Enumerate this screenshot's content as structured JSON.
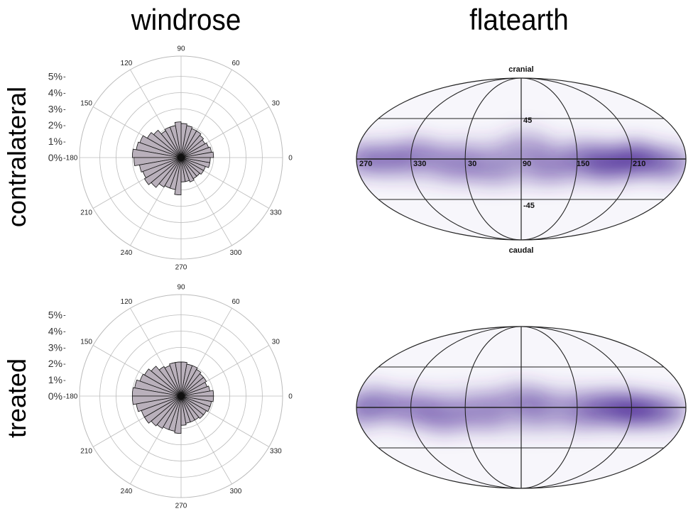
{
  "columns": {
    "left": "windrose",
    "right": "flatearth"
  },
  "rows": {
    "top": "contralateral",
    "bottom": "treated"
  },
  "colors": {
    "bar_fill": "#b9b0bb",
    "bar_stroke": "#111111",
    "grid": "#bbbbbb",
    "density": "#4a2a96",
    "map_line": "#222222"
  },
  "chart_data": [
    {
      "type": "polar-bar",
      "panel": "windrose-contralateral",
      "angle_ticks": [
        "0",
        "30",
        "60",
        "90",
        "120",
        "150",
        "180",
        "210",
        "240",
        "270",
        "300",
        "330"
      ],
      "radial_ticks": [
        "0%",
        "1%",
        "2%",
        "3%",
        "4%",
        "5%"
      ],
      "rlim": [
        0,
        5
      ],
      "bin_width_deg": 10,
      "bin_centers_deg": [
        5,
        15,
        25,
        35,
        45,
        55,
        65,
        75,
        85,
        95,
        105,
        115,
        125,
        135,
        145,
        155,
        165,
        175,
        185,
        195,
        205,
        215,
        225,
        235,
        245,
        255,
        265,
        275,
        285,
        295,
        305,
        315,
        325,
        335,
        345,
        355
      ],
      "values": [
        2.0,
        1.9,
        1.8,
        1.7,
        1.8,
        1.9,
        1.9,
        2.0,
        2.1,
        2.2,
        2.0,
        2.0,
        1.9,
        2.2,
        2.4,
        2.7,
        2.8,
        3.0,
        2.9,
        2.6,
        2.5,
        2.6,
        2.4,
        2.1,
        2.0,
        2.0,
        2.3,
        1.5,
        1.5,
        1.6,
        1.5,
        1.5,
        1.6,
        1.6,
        1.8,
        1.8
      ]
    },
    {
      "type": "heatmap",
      "panel": "flatearth-contralateral",
      "projection": "mollweide",
      "top_label": "cranial",
      "bottom_label": "caudal",
      "lat_labels": [
        "45",
        "-45"
      ],
      "lon_labels": [
        "270",
        "330",
        "30",
        "90",
        "150",
        "210"
      ],
      "parallels": [
        -45,
        0,
        45
      ],
      "density_blobs": [
        {
          "lon": 215,
          "lat": 0,
          "intensity": 1.0
        },
        {
          "lon": 185,
          "lat": -5,
          "intensity": 0.8
        },
        {
          "lon": 250,
          "lat": -5,
          "intensity": 0.6
        },
        {
          "lon": 160,
          "lat": 0,
          "intensity": 0.5
        },
        {
          "lon": 120,
          "lat": -8,
          "intensity": 0.35
        },
        {
          "lon": 300,
          "lat": 0,
          "intensity": 0.5
        },
        {
          "lon": 335,
          "lat": 5,
          "intensity": 0.45
        },
        {
          "lon": 20,
          "lat": -5,
          "intensity": 0.4
        },
        {
          "lon": 60,
          "lat": -10,
          "intensity": 0.3
        },
        {
          "lon": 270,
          "lat": 0,
          "intensity": 0.4
        },
        {
          "lon": 95,
          "lat": 15,
          "intensity": 0.2
        }
      ]
    },
    {
      "type": "polar-bar",
      "panel": "windrose-treated",
      "angle_ticks": [
        "0",
        "30",
        "60",
        "90",
        "120",
        "150",
        "180",
        "210",
        "240",
        "270",
        "300",
        "330"
      ],
      "radial_ticks": [
        "0%",
        "1%",
        "2%",
        "3%",
        "4%",
        "5%"
      ],
      "rlim": [
        0,
        5
      ],
      "bin_width_deg": 10,
      "bin_centers_deg": [
        5,
        15,
        25,
        35,
        45,
        55,
        65,
        75,
        85,
        95,
        105,
        115,
        125,
        135,
        145,
        155,
        165,
        175,
        185,
        195,
        205,
        215,
        225,
        235,
        245,
        255,
        265,
        275,
        285,
        295,
        305,
        315,
        325,
        335,
        345,
        355
      ],
      "values": [
        2.0,
        1.8,
        1.7,
        1.8,
        1.8,
        1.9,
        2.0,
        2.0,
        2.1,
        2.1,
        2.1,
        2.0,
        2.1,
        2.4,
        2.6,
        2.7,
        2.9,
        3.0,
        3.0,
        2.8,
        2.6,
        2.6,
        2.4,
        2.3,
        2.2,
        2.2,
        2.3,
        1.8,
        1.7,
        1.7,
        1.7,
        1.8,
        1.8,
        1.9,
        1.9,
        2.0
      ]
    },
    {
      "type": "heatmap",
      "panel": "flatearth-treated",
      "projection": "mollweide",
      "parallels": [
        -45,
        0,
        45
      ],
      "density_blobs": [
        {
          "lon": 215,
          "lat": -3,
          "intensity": 1.0
        },
        {
          "lon": 190,
          "lat": 0,
          "intensity": 0.7
        },
        {
          "lon": 245,
          "lat": -5,
          "intensity": 0.55
        },
        {
          "lon": 160,
          "lat": -3,
          "intensity": 0.45
        },
        {
          "lon": 290,
          "lat": 5,
          "intensity": 0.5
        },
        {
          "lon": 330,
          "lat": 0,
          "intensity": 0.4
        },
        {
          "lon": 5,
          "lat": -10,
          "intensity": 0.45
        },
        {
          "lon": 50,
          "lat": -5,
          "intensity": 0.35
        },
        {
          "lon": 110,
          "lat": 0,
          "intensity": 0.3
        },
        {
          "lon": 270,
          "lat": -5,
          "intensity": 0.35
        },
        {
          "lon": 90,
          "lat": 10,
          "intensity": 0.2
        }
      ]
    }
  ]
}
